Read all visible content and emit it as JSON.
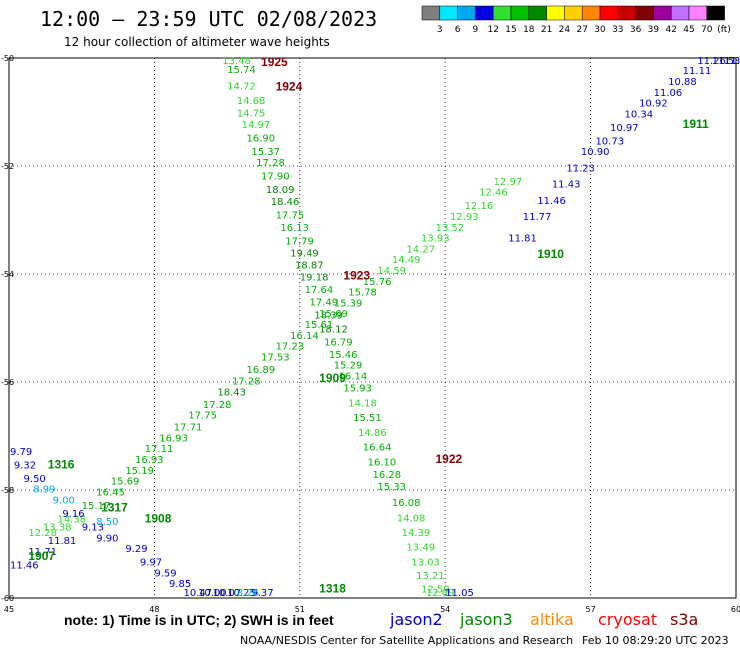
{
  "header": {
    "title": "12:00 — 23:59 UTC 02/08/2023",
    "subtitle": "12 hour collection of altimeter wave heights"
  },
  "colorbar": {
    "unit": "(ft)",
    "stops": [
      {
        "label": "3",
        "color": "#7f7f7f"
      },
      {
        "label": "6",
        "color": "#00e8ff"
      },
      {
        "label": "9",
        "color": "#00a8f0"
      },
      {
        "label": "12",
        "color": "#0000e0"
      },
      {
        "label": "15",
        "color": "#30e030"
      },
      {
        "label": "18",
        "color": "#00c000"
      },
      {
        "label": "21",
        "color": "#008800"
      },
      {
        "label": "24",
        "color": "#ffff00"
      },
      {
        "label": "27",
        "color": "#ffd000"
      },
      {
        "label": "30",
        "color": "#ff8800"
      },
      {
        "label": "33",
        "color": "#ff0000"
      },
      {
        "label": "36",
        "color": "#c80000"
      },
      {
        "label": "39",
        "color": "#800000"
      },
      {
        "label": "42",
        "color": "#a000a0"
      },
      {
        "label": "45",
        "color": "#c070ff"
      },
      {
        "label": "70",
        "color": "#ff80ff"
      },
      {
        "label": "",
        "color": "#000000"
      }
    ]
  },
  "chart_data": {
    "type": "scatter",
    "xlim": [
      45,
      60
    ],
    "ylim": [
      -60,
      -50
    ],
    "x_ticks": [
      "45",
      "48",
      "51",
      "54",
      "57",
      "60"
    ],
    "y_ticks": [
      "-50",
      "-52",
      "-54",
      "-56",
      "-58",
      "-60"
    ],
    "grid": true,
    "times": [
      {
        "label": "1925",
        "x": 50.2,
        "y": -50.1,
        "color": "#800000"
      },
      {
        "label": "1924",
        "x": 50.5,
        "y": -50.6,
        "color": "#800000"
      },
      {
        "label": "1923",
        "x": 51.9,
        "y": -54.1,
        "color": "#800000"
      },
      {
        "label": "1922",
        "x": 53.8,
        "y": -57.5,
        "color": "#800000"
      },
      {
        "label": "1911",
        "x": 58.9,
        "y": -51.3,
        "color": "#008800"
      },
      {
        "label": "1910",
        "x": 55.9,
        "y": -53.7,
        "color": "#008800"
      },
      {
        "label": "1909",
        "x": 51.4,
        "y": -56.0,
        "color": "#008800"
      },
      {
        "label": "1908",
        "x": 47.8,
        "y": -58.6,
        "color": "#008800"
      },
      {
        "label": "1907",
        "x": 45.4,
        "y": -59.3,
        "color": "#008800"
      },
      {
        "label": "1316",
        "x": 45.8,
        "y": -57.6,
        "color": "#008800"
      },
      {
        "label": "1317",
        "x": 46.9,
        "y": -58.4,
        "color": "#008800"
      },
      {
        "label": "1318",
        "x": 51.4,
        "y": -59.9,
        "color": "#008800"
      }
    ],
    "series": [
      {
        "name": "jason3",
        "points": [
          [
            49.4,
            -50.08,
            "13.48"
          ],
          [
            49.5,
            -50.28,
            "15.74"
          ],
          [
            49.5,
            -50.58,
            "14.72"
          ],
          [
            49.7,
            -50.85,
            "14.68"
          ],
          [
            49.7,
            -51.08,
            "14.75"
          ],
          [
            49.8,
            -51.3,
            "14.97"
          ],
          [
            49.9,
            -51.55,
            "16.90"
          ],
          [
            50.0,
            -51.8,
            "15.37"
          ],
          [
            50.1,
            -52.0,
            "17.28"
          ],
          [
            50.2,
            -52.25,
            "17.90"
          ],
          [
            50.3,
            -52.5,
            "18.09"
          ],
          [
            50.4,
            -52.72,
            "18.46"
          ],
          [
            50.5,
            -52.97,
            "17.75"
          ],
          [
            50.6,
            -53.2,
            "16.13"
          ],
          [
            50.7,
            -53.45,
            "17.79"
          ],
          [
            50.8,
            -53.68,
            "19.49"
          ],
          [
            50.9,
            -53.9,
            "18.87"
          ],
          [
            51.0,
            -54.12,
            "19.18"
          ],
          [
            51.1,
            -54.35,
            "17.64"
          ],
          [
            51.2,
            -54.58,
            "17.49"
          ],
          [
            51.3,
            -54.82,
            "18.39"
          ],
          [
            51.4,
            -55.08,
            "18.12"
          ],
          [
            51.5,
            -55.32,
            "16.79"
          ],
          [
            51.6,
            -55.56,
            "15.46"
          ],
          [
            51.7,
            -55.75,
            "15.29"
          ],
          [
            51.8,
            -55.95,
            "16.14"
          ],
          [
            51.9,
            -56.18,
            "15.93"
          ],
          [
            52.0,
            -56.45,
            "14.18"
          ],
          [
            52.1,
            -56.72,
            "15.51"
          ],
          [
            52.2,
            -57.0,
            "14.86"
          ],
          [
            52.3,
            -57.27,
            "16.64"
          ],
          [
            52.4,
            -57.55,
            "16.10"
          ],
          [
            52.5,
            -57.78,
            "16.28"
          ],
          [
            52.6,
            -58.0,
            "15.33"
          ],
          [
            52.9,
            -58.3,
            "16.08"
          ],
          [
            53.0,
            -58.58,
            "14.08"
          ],
          [
            53.1,
            -58.85,
            "14.39"
          ],
          [
            53.2,
            -59.12,
            "13.49"
          ],
          [
            53.3,
            -59.4,
            "13.03"
          ],
          [
            53.4,
            -59.65,
            "13.21"
          ],
          [
            53.5,
            -59.9,
            "12.59"
          ],
          [
            53.6,
            -60.15,
            "12.09"
          ],
          [
            45.4,
            -58.85,
            "12.28"
          ],
          [
            45.7,
            -58.75,
            "13.38"
          ],
          [
            46.0,
            -58.6,
            "14.38"
          ],
          [
            46.5,
            -58.35,
            "15.17"
          ],
          [
            46.8,
            -58.1,
            "16.45"
          ],
          [
            47.1,
            -57.9,
            "15.69"
          ],
          [
            47.4,
            -57.7,
            "15.19"
          ],
          [
            47.6,
            -57.5,
            "16.93"
          ],
          [
            47.8,
            -57.3,
            "17.11"
          ],
          [
            48.1,
            -57.1,
            "16.93"
          ],
          [
            48.4,
            -56.9,
            "17.71"
          ],
          [
            48.7,
            -56.68,
            "17.75"
          ],
          [
            49.0,
            -56.48,
            "17.28"
          ],
          [
            49.3,
            -56.25,
            "18.43"
          ],
          [
            49.6,
            -56.05,
            "17.28"
          ],
          [
            49.9,
            -55.83,
            "16.89"
          ],
          [
            50.2,
            -55.6,
            "17.53"
          ],
          [
            50.5,
            -55.4,
            "17.23"
          ],
          [
            50.8,
            -55.2,
            "16.14"
          ],
          [
            51.1,
            -55.0,
            "15.61"
          ],
          [
            51.4,
            -54.8,
            "15.69"
          ],
          [
            51.7,
            -54.6,
            "15.39"
          ],
          [
            52.0,
            -54.4,
            "15.78"
          ],
          [
            52.3,
            -54.2,
            "15.76"
          ],
          [
            52.6,
            -54.0,
            "14.59"
          ],
          [
            52.9,
            -53.8,
            "14.49"
          ],
          [
            53.2,
            -53.6,
            "14.27"
          ],
          [
            53.5,
            -53.4,
            "13.93"
          ],
          [
            53.8,
            -53.2,
            "13.52"
          ],
          [
            54.1,
            -53.0,
            "12.93"
          ],
          [
            54.4,
            -52.8,
            "12.16"
          ],
          [
            54.7,
            -52.55,
            "12.46"
          ],
          [
            55.0,
            -52.35,
            "12.97"
          ]
        ]
      },
      {
        "name": "jason2",
        "points": [
          [
            45.0,
            -57.35,
            "9.79"
          ],
          [
            45.1,
            -57.6,
            "9.32"
          ],
          [
            45.3,
            -57.85,
            "9.50"
          ],
          [
            46.1,
            -58.5,
            "9.16"
          ],
          [
            46.5,
            -58.75,
            "9.13"
          ],
          [
            46.8,
            -58.95,
            "9.90"
          ],
          [
            47.4,
            -59.15,
            "9.29"
          ],
          [
            47.7,
            -59.4,
            "9.97"
          ],
          [
            48.0,
            -59.6,
            "9.59"
          ],
          [
            48.3,
            -59.8,
            "9.85"
          ],
          [
            48.6,
            -60.05,
            "10.47"
          ],
          [
            48.9,
            -60.3,
            "10.00"
          ],
          [
            49.2,
            -60.5,
            "10.07"
          ],
          [
            49.5,
            -60.7,
            "10.25"
          ],
          [
            50.0,
            -60.95,
            "9.37"
          ],
          [
            45.0,
            -59.45,
            "11.46"
          ],
          [
            45.4,
            -59.2,
            "11.71"
          ],
          [
            45.8,
            -59.0,
            "11.81"
          ],
          [
            55.3,
            -53.4,
            "11.81"
          ],
          [
            55.6,
            -53.0,
            "11.77"
          ],
          [
            55.9,
            -52.7,
            "11.46"
          ],
          [
            56.2,
            -52.4,
            "11.43"
          ],
          [
            56.5,
            -52.1,
            "11.23"
          ],
          [
            56.8,
            -51.8,
            "10.90"
          ],
          [
            57.1,
            -51.6,
            "10.73"
          ],
          [
            57.4,
            -51.35,
            "10.97"
          ],
          [
            57.7,
            -51.1,
            "10.34"
          ],
          [
            58.0,
            -50.9,
            "10.92"
          ],
          [
            58.3,
            -50.7,
            "11.06"
          ],
          [
            58.6,
            -50.5,
            "10.88"
          ],
          [
            58.9,
            -50.3,
            "11.11"
          ],
          [
            59.2,
            -50.1,
            "11.26"
          ],
          [
            59.5,
            -49.9,
            "11.53"
          ],
          [
            59.8,
            -49.7,
            "11.95"
          ],
          [
            60.0,
            -49.5,
            "11.1"
          ],
          [
            54.0,
            -60.1,
            "11.05"
          ]
        ]
      },
      {
        "name": "jason2_cyan",
        "points": [
          [
            45.5,
            -58.05,
            "8.99"
          ],
          [
            45.9,
            -58.25,
            "9.00"
          ],
          [
            46.8,
            -58.65,
            "8.50"
          ],
          [
            49.7,
            -60.65,
            "8.26"
          ]
        ]
      }
    ],
    "legend": {
      "items": [
        {
          "label": "jason2",
          "color": "#0000d0"
        },
        {
          "label": "jason3",
          "color": "#008800"
        },
        {
          "label": "altika",
          "color": "#ff8800"
        },
        {
          "label": "cryosat",
          "color": "#ff0000"
        },
        {
          "label": "s3a",
          "color": "#800000"
        }
      ]
    }
  },
  "footer": {
    "note": "note: 1) Time is in UTC; 2) SWH is in feet",
    "credit": "NOAA/NESDIS Center for Satellite Applications and Research",
    "timestamp": "Feb 10 08:29:20 UTC 2023"
  }
}
